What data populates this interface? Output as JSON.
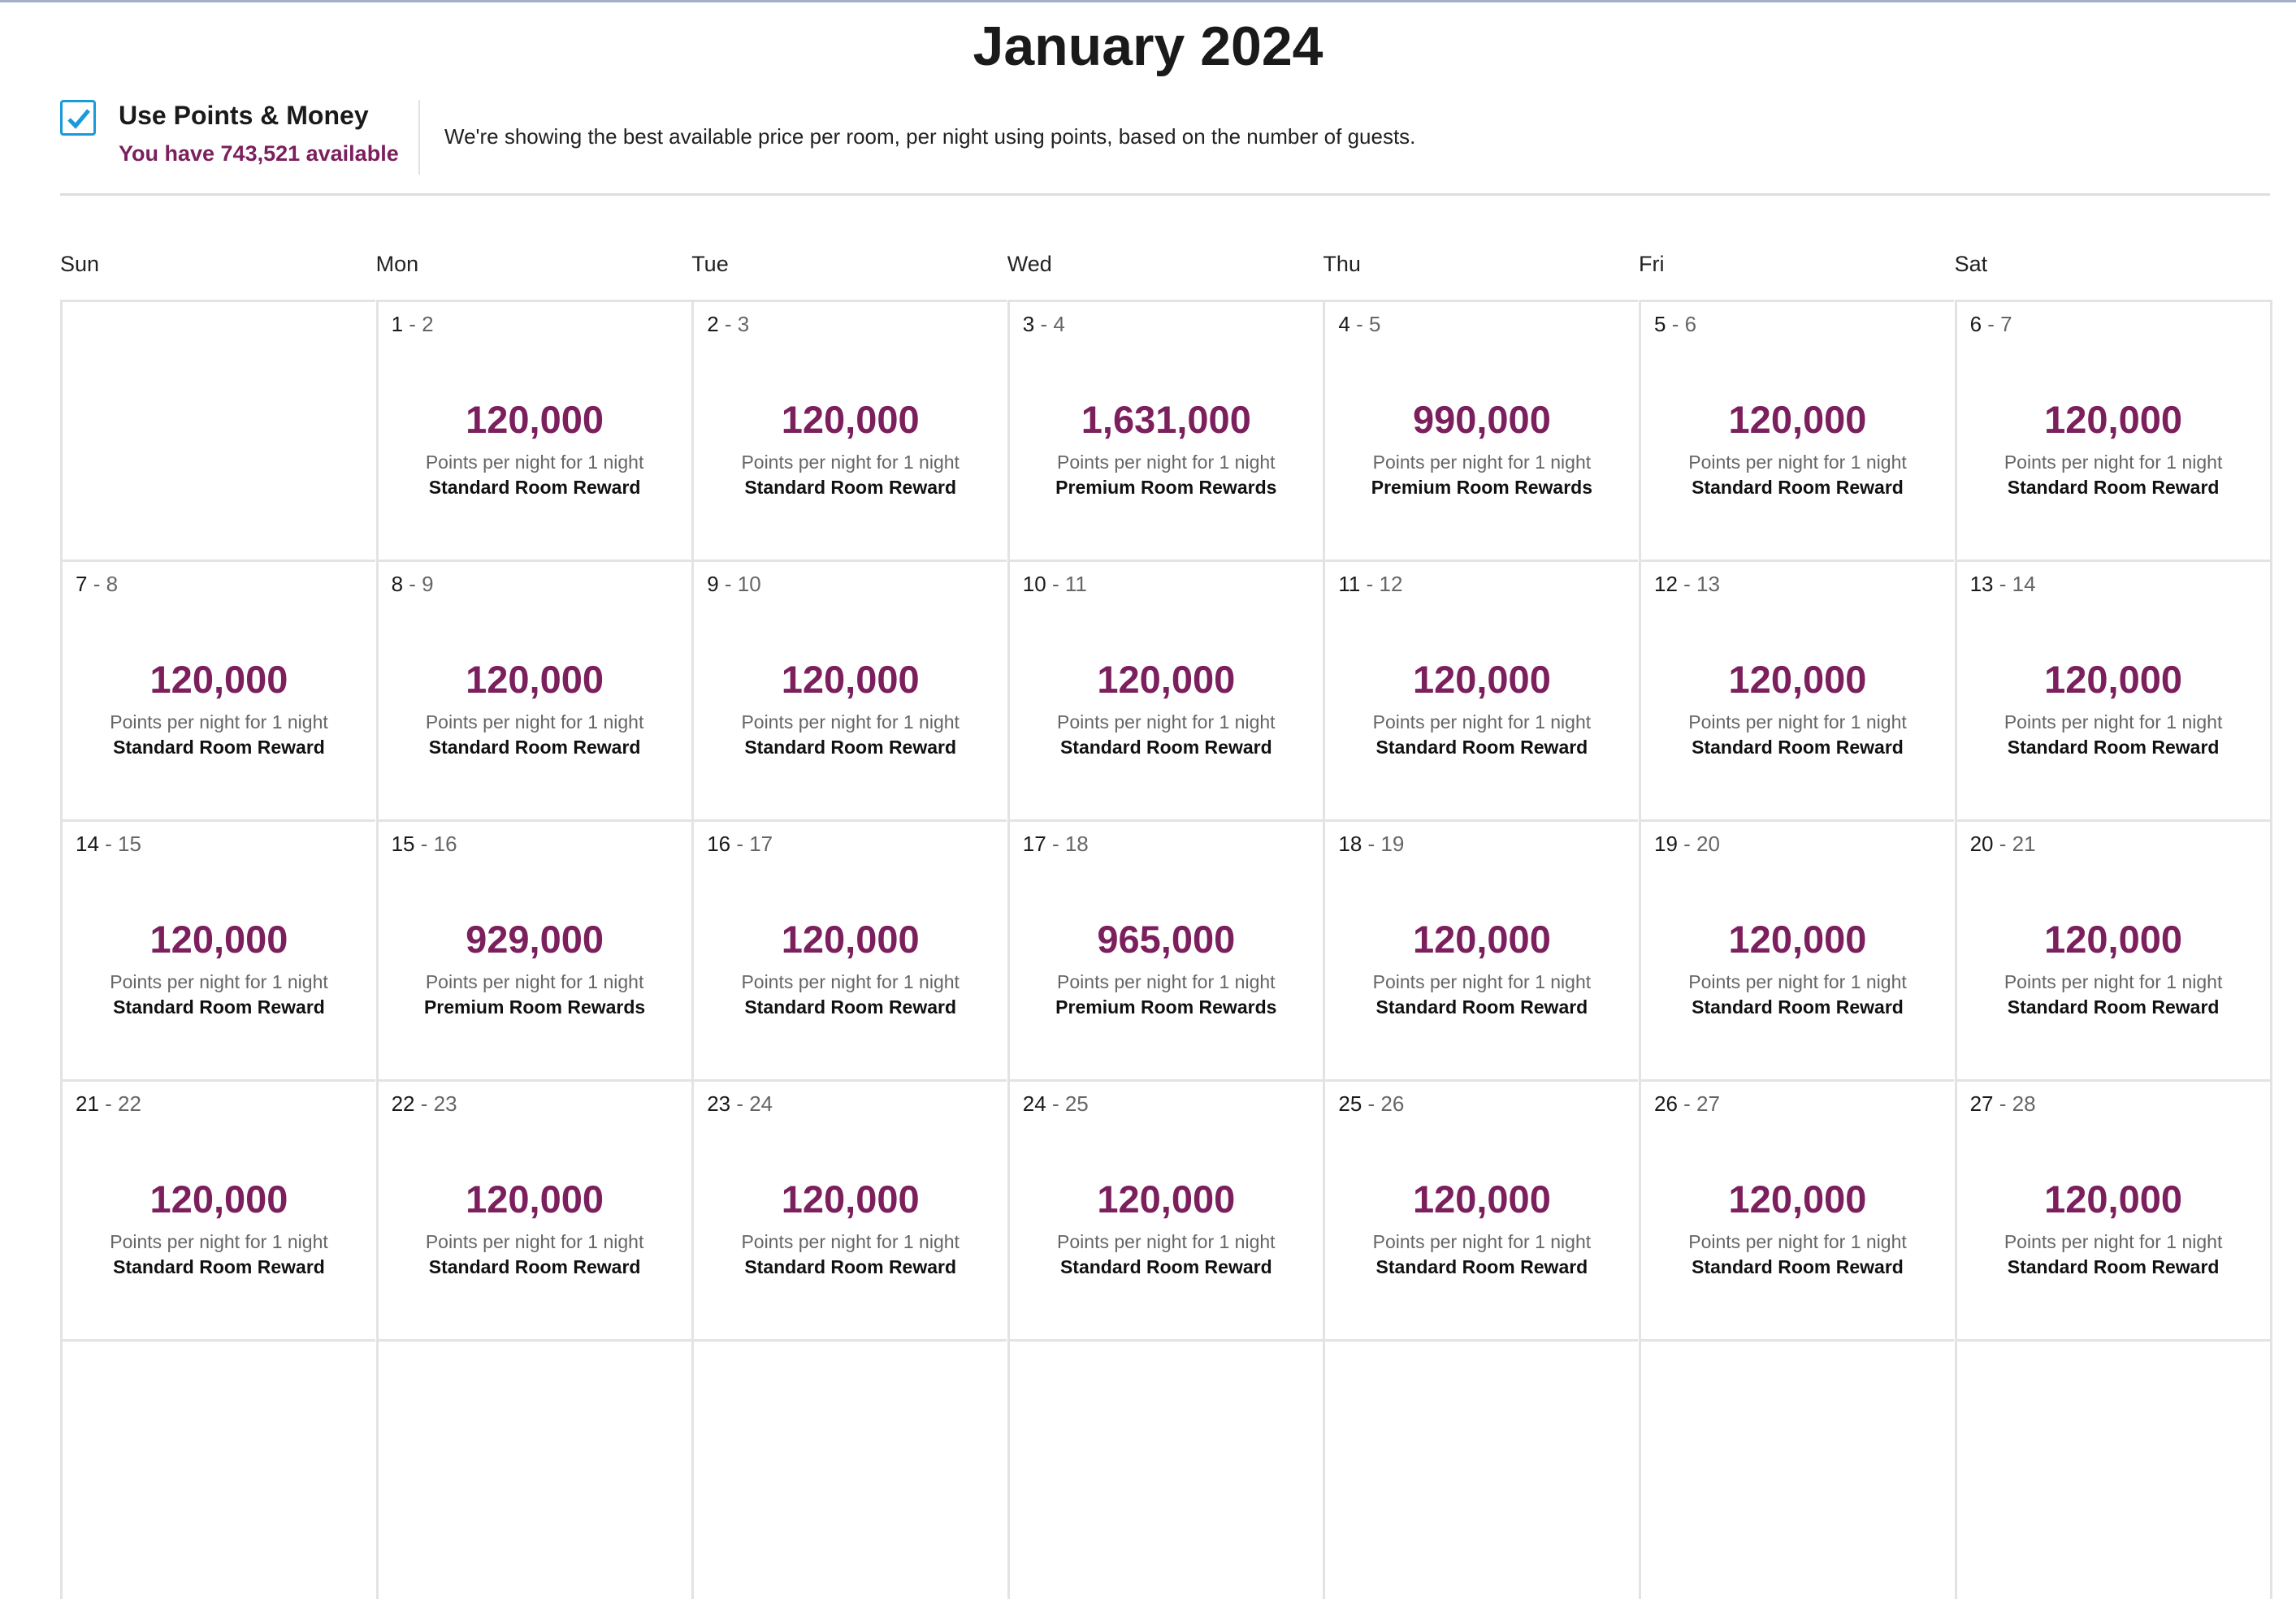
{
  "title": "January 2024",
  "points_option": {
    "checked": true,
    "label": "Use Points & Money",
    "available": "You have 743,521 available",
    "description": "We're showing the best available price per room, per night using points, based on the number of guests."
  },
  "weekdays": [
    "Sun",
    "Mon",
    "Tue",
    "Wed",
    "Thu",
    "Fri",
    "Sat"
  ],
  "colors": {
    "accent": "#7b1f5d",
    "checkbox": "#1a9ad9"
  },
  "weeks": [
    [
      null,
      {
        "check_in": "1",
        "check_out": "2",
        "points": "120,000",
        "unit": "Points per night for 1 night",
        "reward": "Standard Room Reward"
      },
      {
        "check_in": "2",
        "check_out": "3",
        "points": "120,000",
        "unit": "Points per night for 1 night",
        "reward": "Standard Room Reward"
      },
      {
        "check_in": "3",
        "check_out": "4",
        "points": "1,631,000",
        "unit": "Points per night for 1 night",
        "reward": "Premium Room Rewards"
      },
      {
        "check_in": "4",
        "check_out": "5",
        "points": "990,000",
        "unit": "Points per night for 1 night",
        "reward": "Premium Room Rewards"
      },
      {
        "check_in": "5",
        "check_out": "6",
        "points": "120,000",
        "unit": "Points per night for 1 night",
        "reward": "Standard Room Reward"
      },
      {
        "check_in": "6",
        "check_out": "7",
        "points": "120,000",
        "unit": "Points per night for 1 night",
        "reward": "Standard Room Reward"
      }
    ],
    [
      {
        "check_in": "7",
        "check_out": "8",
        "points": "120,000",
        "unit": "Points per night for 1 night",
        "reward": "Standard Room Reward"
      },
      {
        "check_in": "8",
        "check_out": "9",
        "points": "120,000",
        "unit": "Points per night for 1 night",
        "reward": "Standard Room Reward"
      },
      {
        "check_in": "9",
        "check_out": "10",
        "points": "120,000",
        "unit": "Points per night for 1 night",
        "reward": "Standard Room Reward"
      },
      {
        "check_in": "10",
        "check_out": "11",
        "points": "120,000",
        "unit": "Points per night for 1 night",
        "reward": "Standard Room Reward"
      },
      {
        "check_in": "11",
        "check_out": "12",
        "points": "120,000",
        "unit": "Points per night for 1 night",
        "reward": "Standard Room Reward"
      },
      {
        "check_in": "12",
        "check_out": "13",
        "points": "120,000",
        "unit": "Points per night for 1 night",
        "reward": "Standard Room Reward"
      },
      {
        "check_in": "13",
        "check_out": "14",
        "points": "120,000",
        "unit": "Points per night for 1 night",
        "reward": "Standard Room Reward"
      }
    ],
    [
      {
        "check_in": "14",
        "check_out": "15",
        "points": "120,000",
        "unit": "Points per night for 1 night",
        "reward": "Standard Room Reward"
      },
      {
        "check_in": "15",
        "check_out": "16",
        "points": "929,000",
        "unit": "Points per night for 1 night",
        "reward": "Premium Room Rewards"
      },
      {
        "check_in": "16",
        "check_out": "17",
        "points": "120,000",
        "unit": "Points per night for 1 night",
        "reward": "Standard Room Reward"
      },
      {
        "check_in": "17",
        "check_out": "18",
        "points": "965,000",
        "unit": "Points per night for 1 night",
        "reward": "Premium Room Rewards"
      },
      {
        "check_in": "18",
        "check_out": "19",
        "points": "120,000",
        "unit": "Points per night for 1 night",
        "reward": "Standard Room Reward"
      },
      {
        "check_in": "19",
        "check_out": "20",
        "points": "120,000",
        "unit": "Points per night for 1 night",
        "reward": "Standard Room Reward"
      },
      {
        "check_in": "20",
        "check_out": "21",
        "points": "120,000",
        "unit": "Points per night for 1 night",
        "reward": "Standard Room Reward"
      }
    ],
    [
      {
        "check_in": "21",
        "check_out": "22",
        "points": "120,000",
        "unit": "Points per night for 1 night",
        "reward": "Standard Room Reward"
      },
      {
        "check_in": "22",
        "check_out": "23",
        "points": "120,000",
        "unit": "Points per night for 1 night",
        "reward": "Standard Room Reward"
      },
      {
        "check_in": "23",
        "check_out": "24",
        "points": "120,000",
        "unit": "Points per night for 1 night",
        "reward": "Standard Room Reward"
      },
      {
        "check_in": "24",
        "check_out": "25",
        "points": "120,000",
        "unit": "Points per night for 1 night",
        "reward": "Standard Room Reward"
      },
      {
        "check_in": "25",
        "check_out": "26",
        "points": "120,000",
        "unit": "Points per night for 1 night",
        "reward": "Standard Room Reward"
      },
      {
        "check_in": "26",
        "check_out": "27",
        "points": "120,000",
        "unit": "Points per night for 1 night",
        "reward": "Standard Room Reward"
      },
      {
        "check_in": "27",
        "check_out": "28",
        "points": "120,000",
        "unit": "Points per night for 1 night",
        "reward": "Standard Room Reward"
      }
    ],
    [
      null,
      null,
      null,
      null,
      null,
      null,
      null
    ]
  ]
}
